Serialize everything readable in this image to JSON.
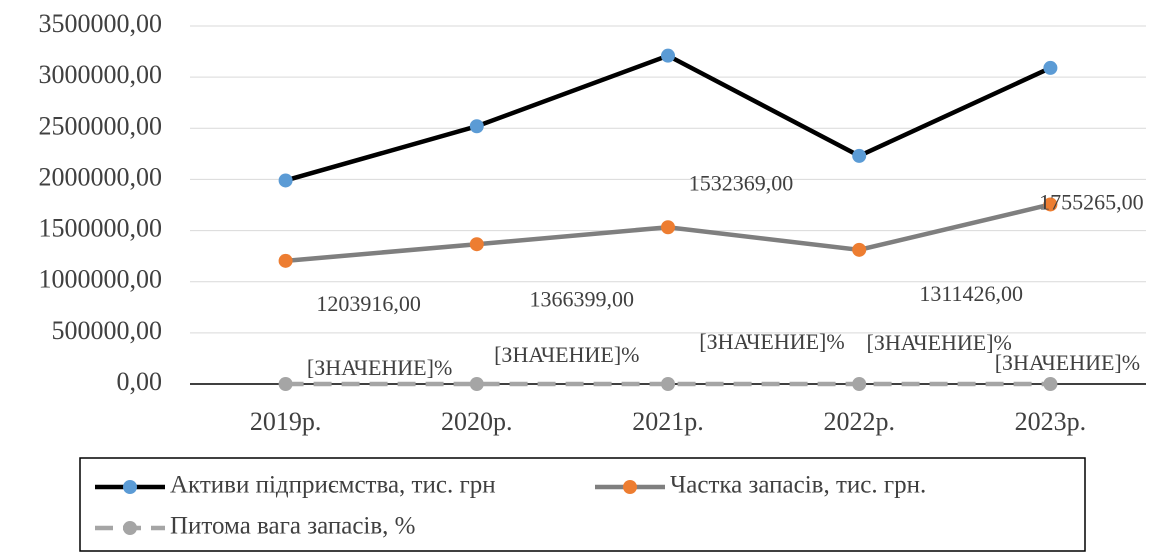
{
  "chart_data": {
    "type": "line",
    "categories": [
      "2019р.",
      "2020р.",
      "2021р.",
      "2022р.",
      "2023р."
    ],
    "series": [
      {
        "name": "Активи підприємства, тис. грн",
        "color": "#000000",
        "marker": "#5b9bd5",
        "values": [
          1990000,
          2520000,
          3210000,
          2230000,
          3090000
        ]
      },
      {
        "name": "Частка запасів, тис. грн.",
        "color": "#7f7f7f",
        "marker": "#ed7d31",
        "values": [
          1203916,
          1366399,
          1532369,
          1311426,
          1755265
        ],
        "value_labels": [
          "1203916,00",
          "1366399,00",
          "1532369,00",
          "1311426,00",
          "1755265,00"
        ]
      },
      {
        "name": "Питома вага запасів, %",
        "color": "#a5a5a5",
        "marker": "#a5a5a5",
        "dashed": true,
        "values": [
          0,
          0,
          0,
          0,
          0
        ],
        "value_labels": [
          "[ЗНАЧЕНИЕ]%",
          "[ЗНАЧЕНИЕ]%",
          "[ЗНАЧЕНИЕ]%",
          "[ЗНАЧЕНИЕ]%",
          "[ЗНАЧЕНИЕ]%"
        ]
      }
    ],
    "ylim": [
      0,
      3500000
    ],
    "yticks": [
      {
        "value": 0,
        "label": "0,00"
      },
      {
        "value": 500000,
        "label": "500000,00"
      },
      {
        "value": 1000000,
        "label": "1000000,00"
      },
      {
        "value": 1500000,
        "label": "1500000,00"
      },
      {
        "value": 2000000,
        "label": "2000000,00"
      },
      {
        "value": 2500000,
        "label": "2500000,00"
      },
      {
        "value": 3000000,
        "label": "3000000,00"
      },
      {
        "value": 3500000,
        "label": "3500000,00"
      }
    ],
    "grid": true,
    "legend": "bottom"
  }
}
